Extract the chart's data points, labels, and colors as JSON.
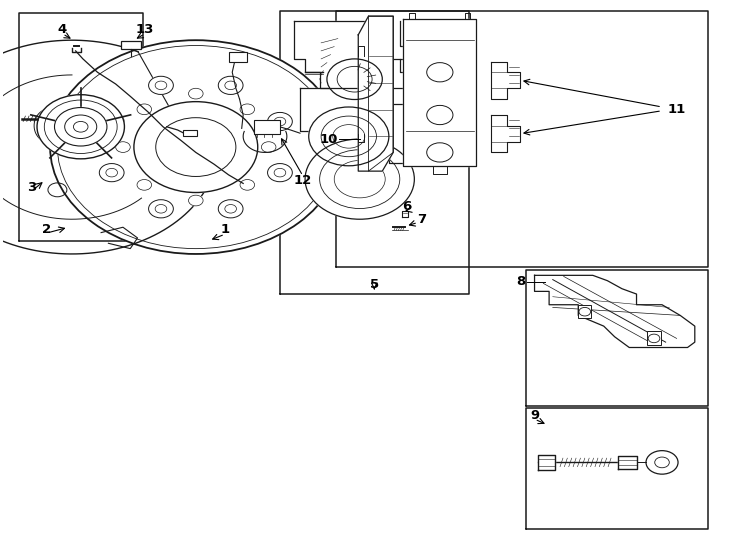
{
  "bg_color": "#ffffff",
  "line_color": "#1a1a1a",
  "fig_width": 7.34,
  "fig_height": 5.4,
  "dpi": 100,
  "boxes": {
    "hub": [
      0.022,
      0.555,
      0.192,
      0.98
    ],
    "caliper": [
      0.38,
      0.455,
      0.64,
      0.985
    ],
    "pads": [
      0.458,
      0.505,
      0.968,
      0.985
    ],
    "knuckle": [
      0.718,
      0.245,
      0.968,
      0.5
    ],
    "bolt": [
      0.718,
      0.015,
      0.968,
      0.242
    ]
  },
  "label_positions": {
    "1": [
      0.305,
      0.575,
      0.29,
      0.56
    ],
    "2": [
      0.062,
      0.57,
      0.09,
      0.58
    ],
    "3": [
      0.04,
      0.66,
      0.058,
      0.67
    ],
    "4": [
      0.082,
      0.94,
      0.098,
      0.92
    ],
    "5": [
      0.51,
      0.47,
      0.51,
      0.48
    ],
    "6": [
      0.56,
      0.59,
      0.548,
      0.575
    ],
    "7": [
      0.59,
      0.57,
      0.572,
      0.558
    ],
    "8": [
      0.724,
      0.48,
      0.745,
      0.475
    ],
    "9": [
      0.727,
      0.228,
      0.748,
      0.21
    ],
    "10": [
      0.464,
      0.745,
      0.482,
      0.745
    ],
    "11": [
      0.905,
      0.795,
      0.892,
      0.808
    ],
    "12": [
      0.412,
      0.67,
      0.395,
      0.658
    ],
    "13": [
      0.188,
      0.94,
      0.178,
      0.92
    ]
  }
}
